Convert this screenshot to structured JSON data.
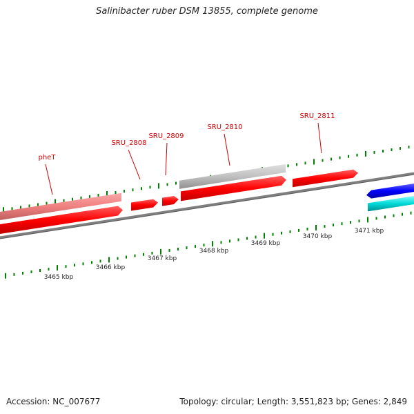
{
  "title": "Salinibacter ruber DSM 13855, complete genome",
  "footer": {
    "accession": "Accession: NC_007677",
    "summary": "Topology: circular; Length: 3,551,823 bp; Genes: 2,849"
  },
  "colors": {
    "forward_gene": "#ff0000",
    "reverse_gene_light": "#f08080",
    "pseudo_gene": "#c0c0c0",
    "blue_gene": "#0000ff",
    "cyan_gene": "#00cccc",
    "backbone": "#808080",
    "tick": "#008000",
    "label": "#cc0000"
  },
  "gene_labels": [
    "pheT",
    "SRU_2808",
    "SRU_2809",
    "SRU_2810",
    "SRU_2811"
  ],
  "kbp_labels": [
    "3465 kbp",
    "3466 kbp",
    "3467 kbp",
    "3468 kbp",
    "3469 kbp",
    "3470 kbp",
    "3471 kbp"
  ]
}
